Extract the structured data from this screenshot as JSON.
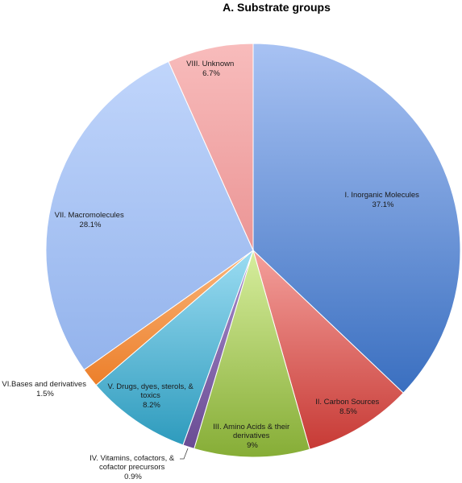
{
  "chart_data": {
    "type": "pie",
    "title": "A. Substrate groups",
    "slices": [
      {
        "name": "I. Inorganic Molecules",
        "value_label": "37.1%",
        "value": 37.1,
        "color": "#5f86d2"
      },
      {
        "name": "II. Carbon Sources",
        "value_label": "8.5%",
        "value": 8.5,
        "color": "#e2655f"
      },
      {
        "name": "III. Amino Acids & their derivatives",
        "value_label": "9%",
        "value": 9.0,
        "color": "#9ec24f"
      },
      {
        "name": "IV. Vitamins, cofactors, & cofactor precursors",
        "value_label": "0.9%",
        "value": 0.9,
        "color": "#8064a2"
      },
      {
        "name": "V. Drugs, dyes, sterols, & toxics",
        "value_label": "8.2%",
        "value": 8.2,
        "color": "#4bacc6"
      },
      {
        "name": "VI.Bases and derivatives",
        "value_label": "1.5%",
        "value": 1.5,
        "color": "#f79646"
      },
      {
        "name": "VII. Macromolecules",
        "value_label": "28.1%",
        "value": 28.1,
        "color": "#a9c4f5"
      },
      {
        "name": "VIII. Unknown",
        "value_label": "6.7%",
        "value": 6.7,
        "color": "#f4a6a6"
      }
    ],
    "legend": "none"
  }
}
